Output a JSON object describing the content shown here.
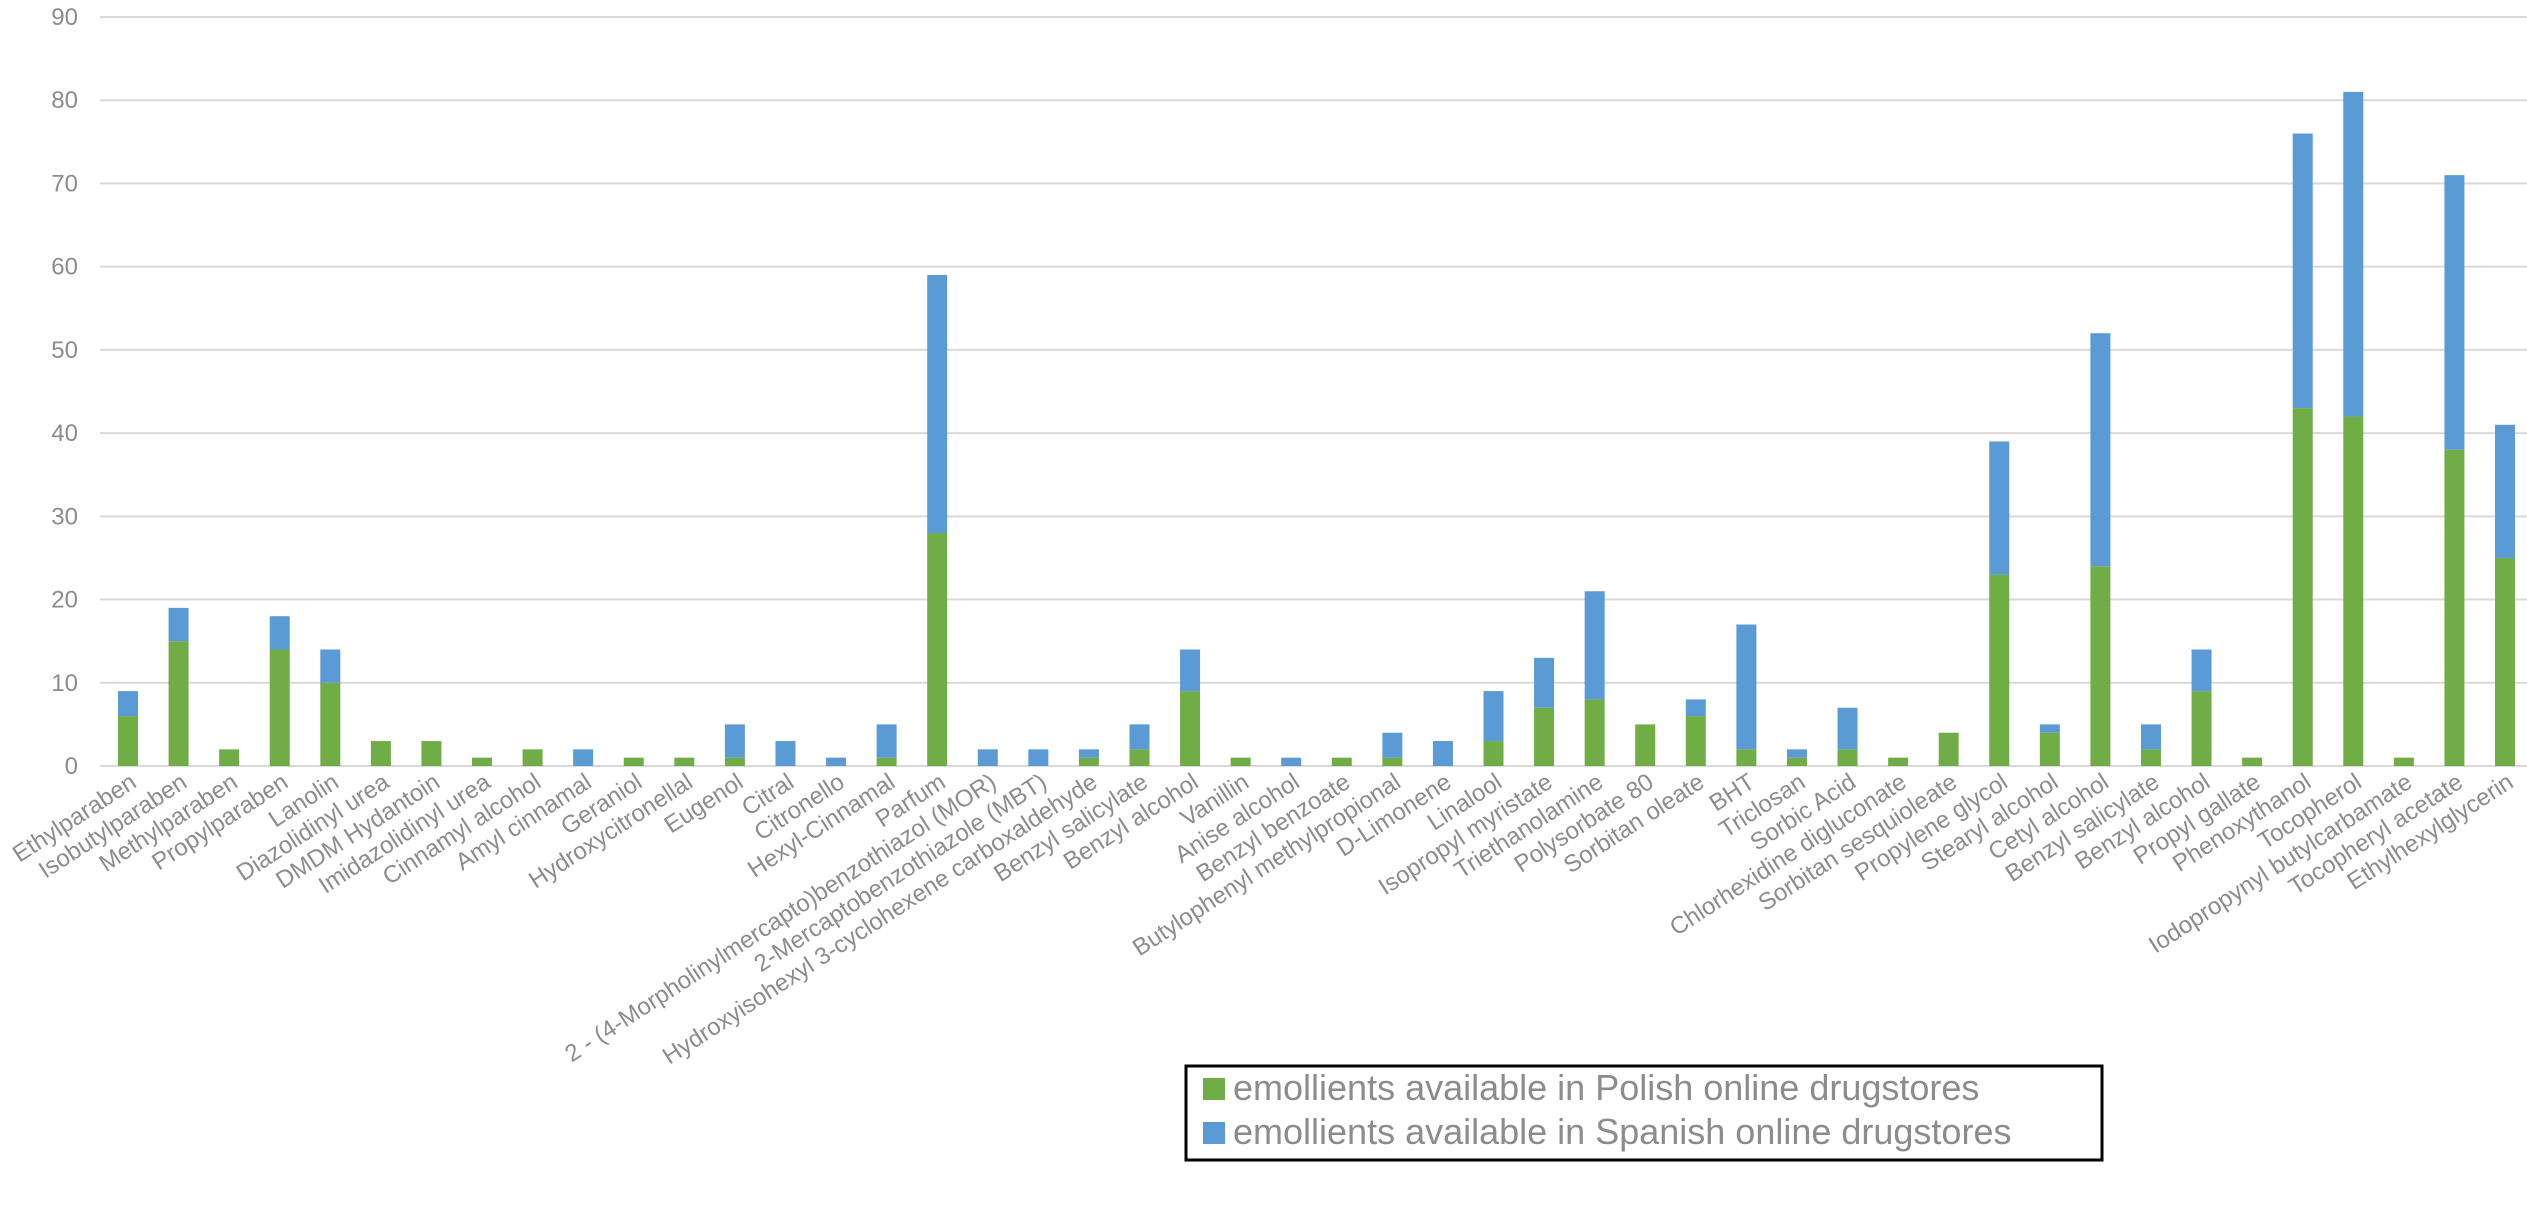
{
  "chart_data": {
    "type": "bar",
    "stacked": true,
    "title": "",
    "xlabel": "",
    "ylabel": "",
    "ylim": [
      0,
      90
    ],
    "yticks": [
      0,
      10,
      20,
      30,
      40,
      50,
      60,
      70,
      80,
      90
    ],
    "grid": true,
    "legend": {
      "placement": "bottom-right"
    },
    "colors": {
      "polish": "#70ad47",
      "spanish": "#5b9bd5"
    },
    "categories": [
      "Ethylparaben",
      "Isobutylparaben",
      "Methylparaben",
      "Propylparaben",
      "Lanolin",
      "Diazolidinyl urea",
      "DMDM Hydantoin",
      "Imidazolidinyl urea",
      "Cinnamyl alcohol",
      "Amyl cinnamal",
      "Geraniol",
      "Hydroxycitronellal",
      "Eugenol",
      "Citral",
      "Citronello",
      "Hexyl-Cinnamal",
      "Parfum",
      "2 - (4-Morpholinylmercapto)benzothiazol (MOR)",
      "2-Mercaptobenzothiazole (MBT)",
      "Hydroxyisohexyl 3-cyclohexene carboxaldehyde",
      "Benzyl salicylate",
      "Benzyl alcohol",
      "Vanillin",
      "Anise alcohol",
      "Benzyl benzoate",
      "Butylophenyl methylpropional",
      "D-Limonene",
      "Linalool",
      "Isopropyl myristate",
      "Triethanolamine",
      "Polysorbate 80",
      "Sorbitan oleate",
      "BHT",
      "Triclosan",
      "Sorbic Acid",
      "Chlorhexidine digluconate",
      "Sorbitan sesquioleate",
      "Propylene glycol",
      "Stearyl alcohol",
      "Cetyl alcohol",
      "Benzyl salicylate",
      "Benzyl alcohol",
      "Propyl gallate",
      "Phenoxythanol",
      "Tocopherol",
      "Iodopropynyl butylcarbamate",
      "Tocopheryl acetate",
      "Ethylhexylglycerin"
    ],
    "series": [
      {
        "name": "emollients available in Polish online drugstores",
        "values": [
          6,
          15,
          2,
          14,
          10,
          3,
          3,
          1,
          2,
          0,
          1,
          1,
          1,
          0,
          0,
          1,
          28,
          0,
          0,
          1,
          2,
          9,
          1,
          0,
          1,
          1,
          0,
          3,
          7,
          8,
          5,
          6,
          2,
          1,
          2,
          1,
          4,
          23,
          4,
          24,
          2,
          9,
          1,
          43,
          42,
          1,
          38,
          25
        ]
      },
      {
        "name": "emollients available in Spanish online drugstores",
        "values": [
          3,
          4,
          0,
          4,
          4,
          0,
          0,
          0,
          0,
          2,
          0,
          0,
          4,
          3,
          1,
          4,
          31,
          2,
          2,
          1,
          3,
          5,
          0,
          1,
          0,
          3,
          3,
          6,
          6,
          13,
          0,
          2,
          15,
          1,
          5,
          0,
          0,
          16,
          1,
          28,
          3,
          5,
          0,
          33,
          39,
          0,
          33,
          16
        ]
      }
    ]
  }
}
